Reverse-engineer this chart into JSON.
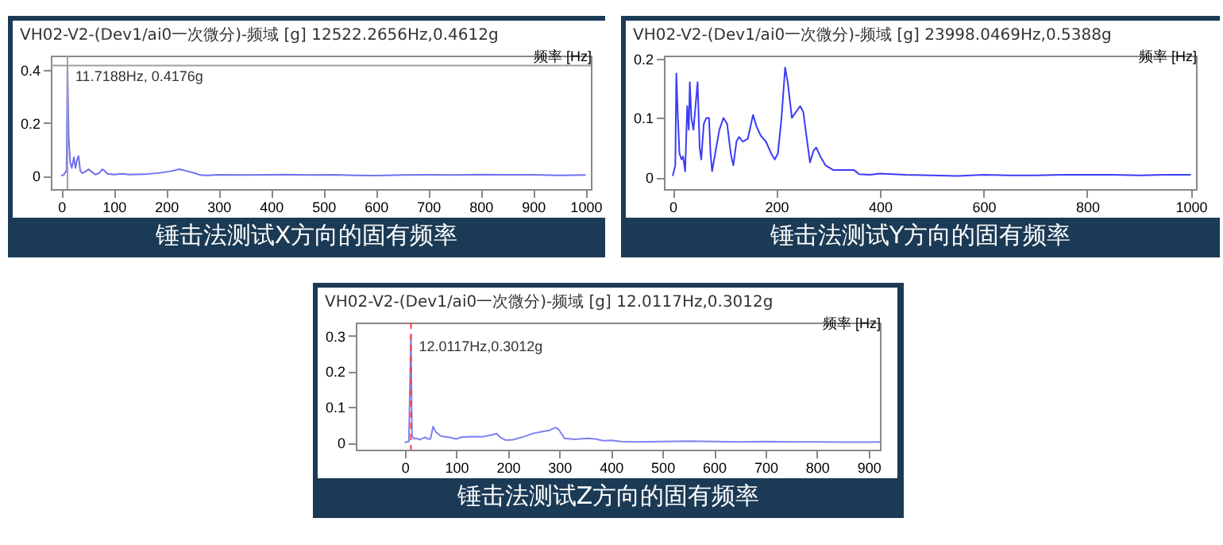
{
  "chart_data": [
    {
      "type": "line",
      "title": "锤击法测试X方向的固有频率",
      "subtitle": "VH02-V2-(Dev1/ai0一次微分)-频域 [g] 12522.2656Hz,0.4612g",
      "xlabel": "频率 [Hz]",
      "color": "#7070f0",
      "x": [
        0,
        5,
        10,
        11.7188,
        14,
        17,
        20,
        24,
        27,
        30,
        33,
        36,
        40,
        45,
        52,
        58,
        65,
        72,
        78,
        82,
        88,
        100,
        115,
        130,
        160,
        190,
        210,
        225,
        240,
        255,
        265,
        280,
        300,
        350,
        400,
        430,
        470,
        520,
        560,
        600,
        650,
        700,
        750,
        800,
        850,
        900,
        950,
        1000
      ],
      "values": [
        0,
        0.005,
        0.02,
        0.4176,
        0.15,
        0.05,
        0.03,
        0.07,
        0.03,
        0.06,
        0.075,
        0.02,
        0.01,
        0.015,
        0.025,
        0.015,
        0.005,
        0.01,
        0.025,
        0.02,
        0.008,
        0.005,
        0.008,
        0.005,
        0.006,
        0.012,
        0.018,
        0.025,
        0.018,
        0.01,
        0.003,
        0.002,
        0.004,
        0.003,
        0.004,
        0.005,
        0.003,
        0.004,
        0.002,
        0.001,
        0.003,
        0.004,
        0.003,
        0.005,
        0.004,
        0.004,
        0.002,
        0.003
      ],
      "xlim": [
        -20,
        1010
      ],
      "ylim": [
        -0.05,
        0.455
      ],
      "xticks": [
        0,
        100,
        200,
        300,
        400,
        500,
        600,
        700,
        800,
        900,
        1000
      ],
      "yticks": [
        0,
        0.2,
        0.4
      ],
      "ref_lines": [
        {
          "axis": "x",
          "value": 11.7188,
          "color": "#a0a0a0"
        },
        {
          "axis": "y",
          "value": 0.4176,
          "color": "#a0a0a0"
        }
      ],
      "annotations": [
        {
          "text": "11.7188Hz, 0.4176g",
          "x": 11.7188,
          "y": 0.4176
        }
      ]
    },
    {
      "type": "line",
      "title": "锤击法测试Y方向的固有频率",
      "subtitle": "VH02-V2-(Dev1/ai0一次微分)-频域 [g] 23998.0469Hz,0.5388g",
      "xlabel": "频率 [Hz]",
      "color": "#3c3cf5",
      "x": [
        0,
        5,
        7,
        10,
        13,
        17,
        20,
        24,
        28,
        31,
        33,
        36,
        40,
        44,
        48,
        52,
        55,
        60,
        65,
        70,
        73,
        76,
        82,
        90,
        98,
        105,
        112,
        117,
        123,
        128,
        135,
        145,
        155,
        162,
        170,
        180,
        190,
        197,
        203,
        210,
        217,
        222,
        230,
        238,
        246,
        252,
        258,
        265,
        272,
        277,
        285,
        295,
        310,
        330,
        350,
        360,
        380,
        400,
        450,
        500,
        550,
        600,
        650,
        700,
        750,
        800,
        850,
        900,
        950,
        1000
      ],
      "values": [
        0.002,
        0.02,
        0.175,
        0.1,
        0.04,
        0.03,
        0.035,
        0.01,
        0.12,
        0.08,
        0.16,
        0.1,
        0.08,
        0.12,
        0.16,
        0.05,
        0.03,
        0.09,
        0.1,
        0.1,
        0.04,
        0.01,
        0.04,
        0.08,
        0.1,
        0.09,
        0.04,
        0.02,
        0.06,
        0.068,
        0.06,
        0.065,
        0.105,
        0.085,
        0.07,
        0.06,
        0.04,
        0.03,
        0.04,
        0.1,
        0.185,
        0.16,
        0.1,
        0.11,
        0.12,
        0.11,
        0.07,
        0.025,
        0.045,
        0.05,
        0.035,
        0.02,
        0.012,
        0.012,
        0.012,
        0.005,
        0.004,
        0.006,
        0.004,
        0.003,
        0.002,
        0.004,
        0.003,
        0.003,
        0.004,
        0.004,
        0.004,
        0.003,
        0.004,
        0.004
      ],
      "xlim": [
        -17,
        1010
      ],
      "ylim": [
        -0.02,
        0.205
      ],
      "xticks": [
        0,
        200,
        400,
        600,
        800,
        1000
      ],
      "yticks": [
        0,
        0.1,
        0.2
      ]
    },
    {
      "type": "line",
      "title": "锤击法测试Z方向的固有频率",
      "subtitle": "VH02-V2-(Dev1/ai0一次微分)-频域 [g] 12.0117Hz,0.3012g",
      "xlabel": "频率 [Hz]",
      "color": "#8080f0",
      "x": [
        0,
        8,
        12.0117,
        14,
        18,
        22,
        28,
        35,
        40,
        45,
        50,
        55,
        60,
        70,
        85,
        100,
        110,
        130,
        150,
        170,
        178,
        185,
        195,
        210,
        230,
        250,
        265,
        280,
        292,
        298,
        310,
        330,
        355,
        370,
        385,
        400,
        420,
        450,
        500,
        550,
        600,
        650,
        700,
        750,
        800,
        850,
        900,
        922
      ],
      "values": [
        0,
        0.003,
        0.3012,
        0.02,
        0.01,
        0.012,
        0.008,
        0.012,
        0.015,
        0.01,
        0.01,
        0.045,
        0.03,
        0.018,
        0.015,
        0.01,
        0.015,
        0.017,
        0.016,
        0.022,
        0.025,
        0.015,
        0.007,
        0.008,
        0.016,
        0.026,
        0.03,
        0.034,
        0.042,
        0.038,
        0.012,
        0.009,
        0.012,
        0.01,
        0.005,
        0.006,
        0.003,
        0.002,
        0.003,
        0.004,
        0.003,
        0.002,
        0.003,
        0.002,
        0.002,
        0.001,
        0.001,
        0.002
      ],
      "xlim": [
        -95,
        922
      ],
      "ylim": [
        -0.02,
        0.337
      ],
      "xticks": [
        0,
        100,
        200,
        300,
        400,
        500,
        600,
        700,
        800,
        900
      ],
      "yticks": [
        0,
        0.1,
        0.2,
        0.3
      ],
      "ref_lines": [
        {
          "axis": "x",
          "value": 12.0117,
          "color": "#ff4040",
          "line_style": "dashed"
        }
      ],
      "annotations": [
        {
          "text": "12.0117Hz,0.3012g",
          "x": 12.0117,
          "y": 0.3012
        }
      ]
    }
  ]
}
